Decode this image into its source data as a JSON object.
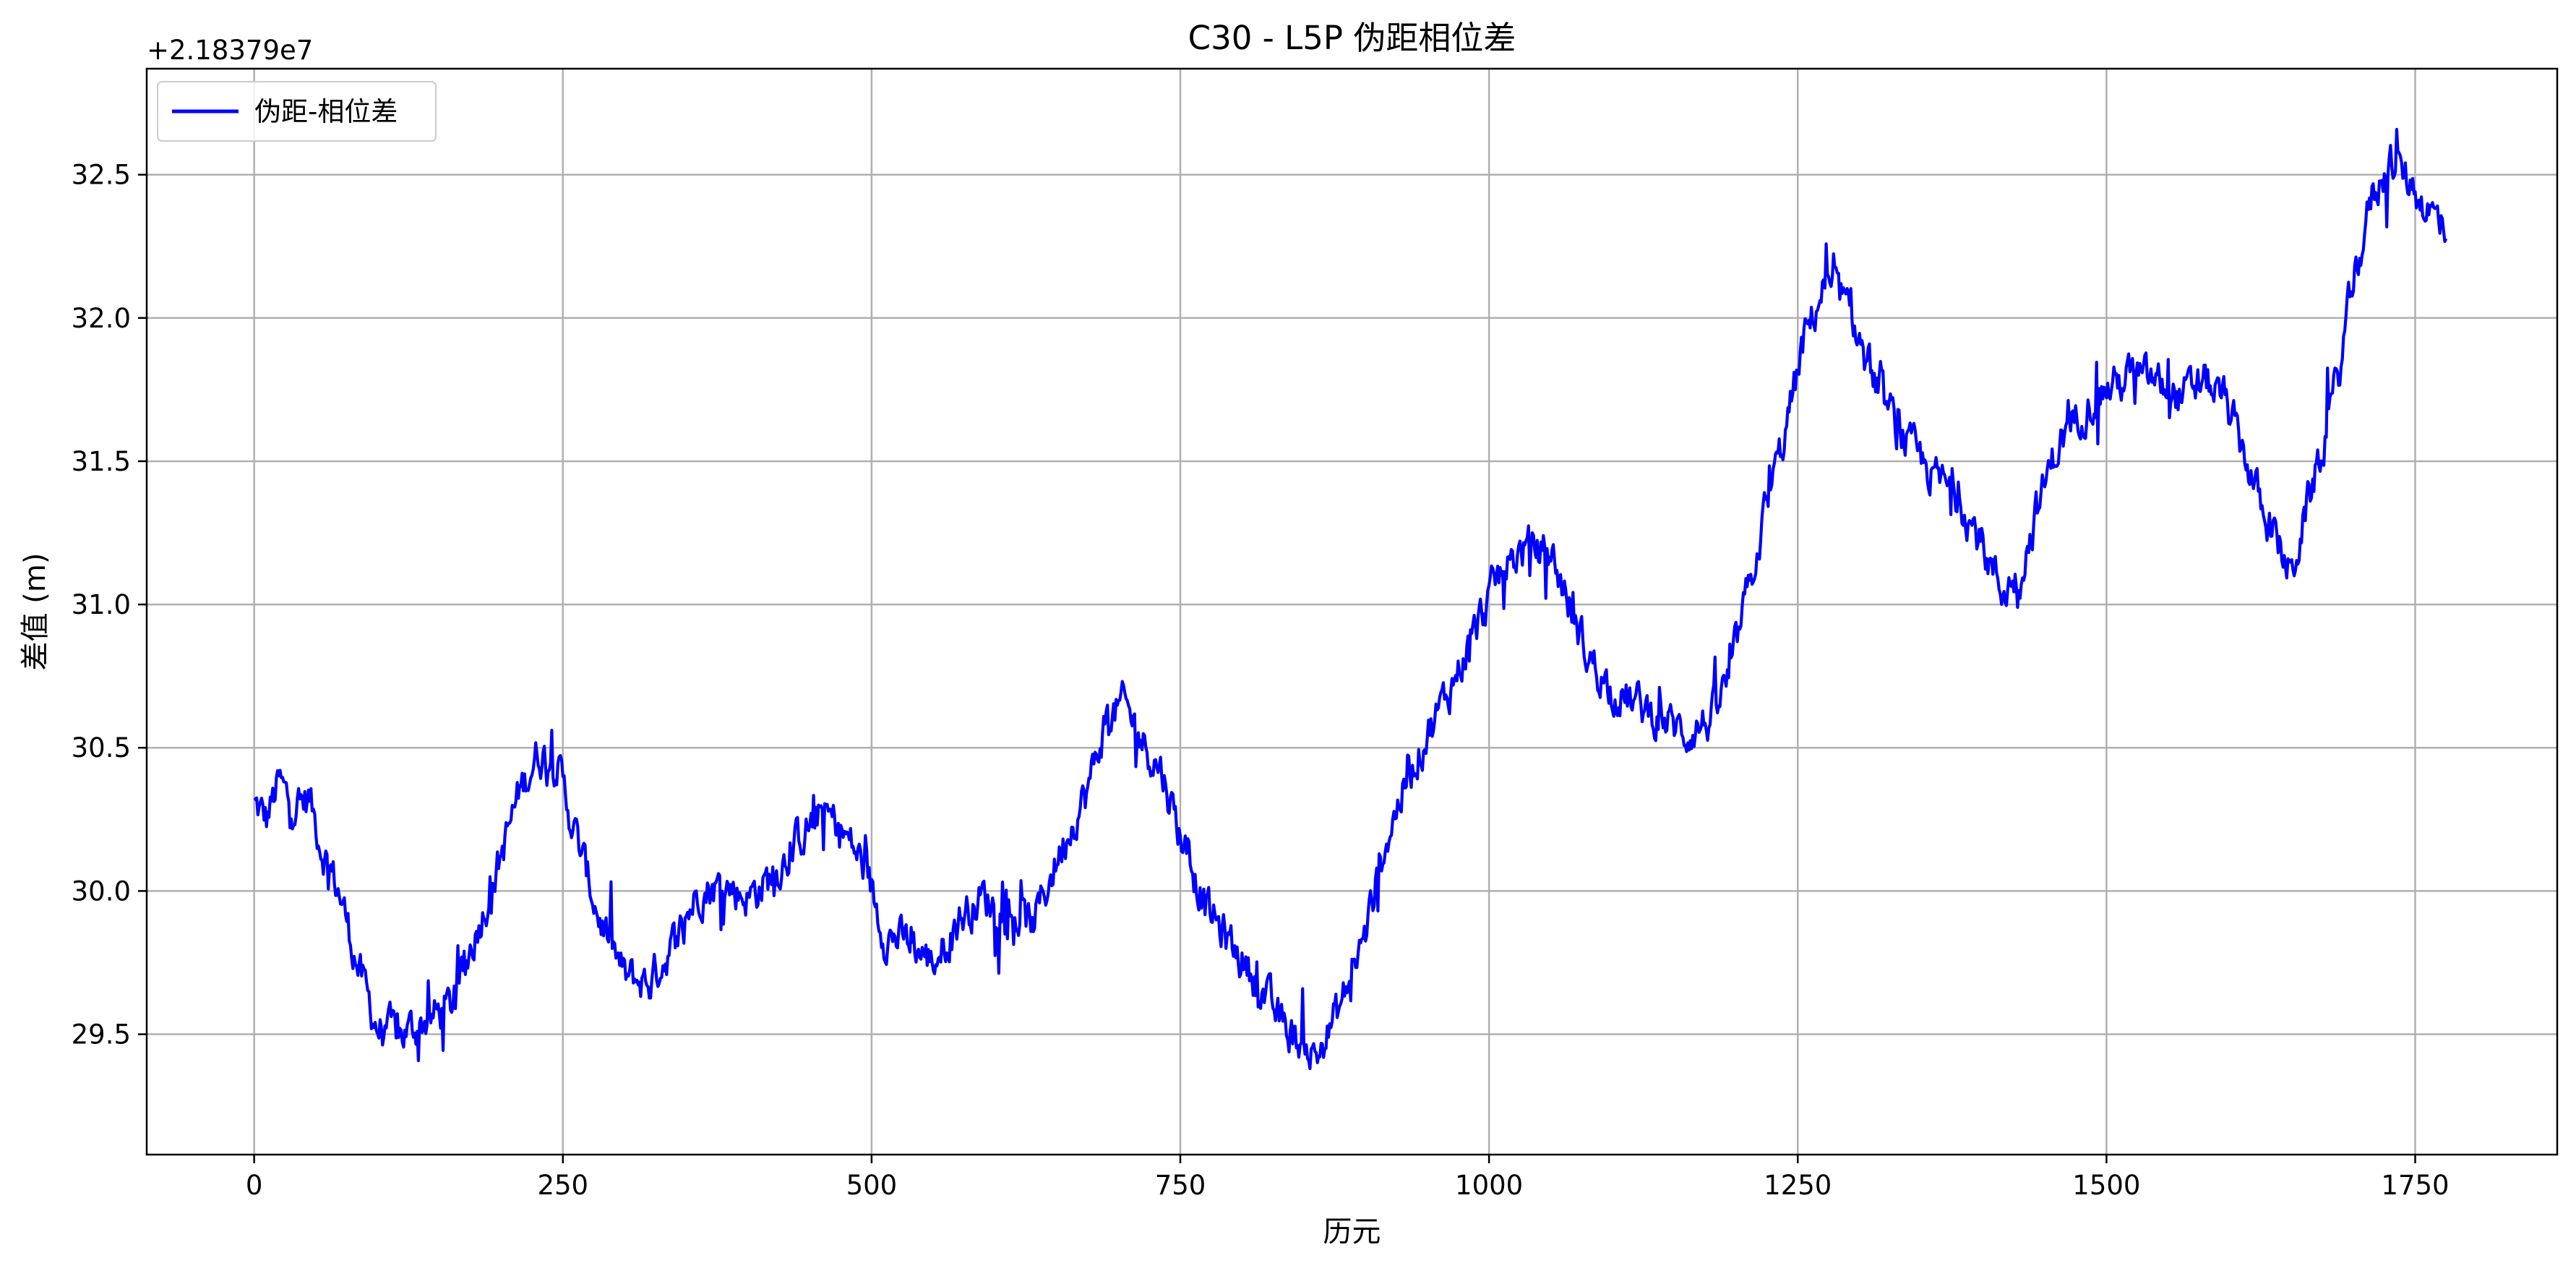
{
  "chart_data": {
    "type": "line",
    "title": "C30 - L5P 伪距相位差",
    "xlabel": "历元",
    "ylabel": "差值 (m)",
    "y_offset_label": "+2.18379e7",
    "xlim": [
      -87,
      1865
    ],
    "ylim": [
      29.08,
      32.87
    ],
    "x_ticks": [
      0,
      250,
      500,
      750,
      1000,
      1250,
      1500,
      1750
    ],
    "y_ticks": [
      29.5,
      30.0,
      30.5,
      31.0,
      31.5,
      32.0,
      32.5
    ],
    "x_tick_labels": [
      "0",
      "250",
      "500",
      "750",
      "1000",
      "1250",
      "1500",
      "1750"
    ],
    "y_tick_labels": [
      "29.5",
      "30.0",
      "30.5",
      "31.0",
      "31.5",
      "32.0",
      "32.5"
    ],
    "grid": true,
    "legend_position": "top-left",
    "series": [
      {
        "name": "伪距-相位差",
        "color": "#0000ff",
        "x_start": 0,
        "x_step": 1,
        "trend": [
          [
            0,
            30.3
          ],
          [
            10,
            30.25
          ],
          [
            20,
            30.38
          ],
          [
            30,
            30.3
          ],
          [
            45,
            30.32
          ],
          [
            55,
            30.15
          ],
          [
            70,
            29.98
          ],
          [
            85,
            29.72
          ],
          [
            100,
            29.52
          ],
          [
            120,
            29.5
          ],
          [
            140,
            29.55
          ],
          [
            160,
            29.6
          ],
          [
            175,
            29.8
          ],
          [
            195,
            30.05
          ],
          [
            215,
            30.35
          ],
          [
            230,
            30.48
          ],
          [
            245,
            30.45
          ],
          [
            260,
            30.2
          ],
          [
            280,
            29.9
          ],
          [
            300,
            29.7
          ],
          [
            320,
            29.68
          ],
          [
            340,
            29.82
          ],
          [
            360,
            30.0
          ],
          [
            380,
            30.02
          ],
          [
            400,
            29.98
          ],
          [
            420,
            30.05
          ],
          [
            440,
            30.18
          ],
          [
            460,
            30.28
          ],
          [
            475,
            30.22
          ],
          [
            495,
            30.08
          ],
          [
            510,
            29.85
          ],
          [
            530,
            29.82
          ],
          [
            550,
            29.75
          ],
          [
            570,
            29.9
          ],
          [
            590,
            29.98
          ],
          [
            610,
            29.92
          ],
          [
            630,
            29.88
          ],
          [
            645,
            30.05
          ],
          [
            660,
            30.22
          ],
          [
            675,
            30.35
          ],
          [
            690,
            30.6
          ],
          [
            705,
            30.65
          ],
          [
            720,
            30.52
          ],
          [
            735,
            30.42
          ],
          [
            750,
            30.2
          ],
          [
            770,
            29.95
          ],
          [
            790,
            29.82
          ],
          [
            810,
            29.7
          ],
          [
            830,
            29.55
          ],
          [
            845,
            29.48
          ],
          [
            860,
            29.42
          ],
          [
            880,
            29.6
          ],
          [
            900,
            29.85
          ],
          [
            915,
            30.15
          ],
          [
            930,
            30.35
          ],
          [
            950,
            30.55
          ],
          [
            970,
            30.72
          ],
          [
            990,
            30.92
          ],
          [
            1010,
            31.12
          ],
          [
            1030,
            31.2
          ],
          [
            1050,
            31.18
          ],
          [
            1065,
            31.0
          ],
          [
            1080,
            30.82
          ],
          [
            1100,
            30.7
          ],
          [
            1120,
            30.65
          ],
          [
            1140,
            30.6
          ],
          [
            1160,
            30.55
          ],
          [
            1180,
            30.6
          ],
          [
            1195,
            30.75
          ],
          [
            1210,
            31.05
          ],
          [
            1225,
            31.35
          ],
          [
            1240,
            31.6
          ],
          [
            1255,
            31.92
          ],
          [
            1270,
            32.1
          ],
          [
            1285,
            32.08
          ],
          [
            1300,
            31.92
          ],
          [
            1320,
            31.7
          ],
          [
            1340,
            31.55
          ],
          [
            1360,
            31.45
          ],
          [
            1380,
            31.38
          ],
          [
            1400,
            31.2
          ],
          [
            1415,
            31.05
          ],
          [
            1430,
            31.1
          ],
          [
            1445,
            31.35
          ],
          [
            1460,
            31.55
          ],
          [
            1480,
            31.68
          ],
          [
            1500,
            31.75
          ],
          [
            1520,
            31.8
          ],
          [
            1540,
            31.78
          ],
          [
            1560,
            31.72
          ],
          [
            1580,
            31.78
          ],
          [
            1595,
            31.72
          ],
          [
            1610,
            31.55
          ],
          [
            1625,
            31.35
          ],
          [
            1640,
            31.2
          ],
          [
            1650,
            31.1
          ],
          [
            1660,
            31.3
          ],
          [
            1675,
            31.55
          ],
          [
            1690,
            31.85
          ],
          [
            1700,
            32.15
          ],
          [
            1715,
            32.42
          ],
          [
            1730,
            32.55
          ],
          [
            1745,
            32.48
          ],
          [
            1760,
            32.38
          ],
          [
            1775,
            32.32
          ]
        ],
        "noise_amplitude": 0.13,
        "count": 1776
      }
    ]
  }
}
